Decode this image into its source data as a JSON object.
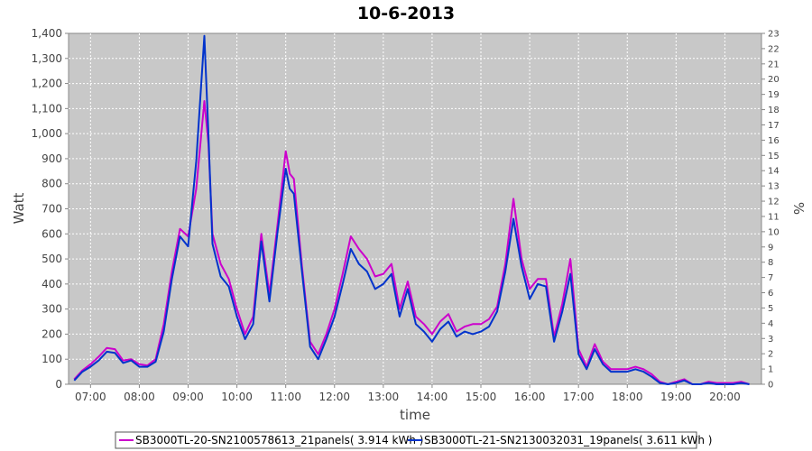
{
  "chart_data": {
    "type": "line",
    "title": "10-6-2013",
    "xlabel": "time",
    "ylabel": "Watt",
    "y2label": "%",
    "ylim": [
      0,
      1400
    ],
    "y2lim": [
      0,
      23
    ],
    "xlim": [
      6.55,
      20.75
    ],
    "grid": true,
    "legend_position": "bottom",
    "x_ticks": [
      {
        "value": 7,
        "label": "07:00"
      },
      {
        "value": 8,
        "label": "08:00"
      },
      {
        "value": 9,
        "label": "09:00"
      },
      {
        "value": 10,
        "label": "10:00"
      },
      {
        "value": 11,
        "label": "11:00"
      },
      {
        "value": 12,
        "label": "12:00"
      },
      {
        "value": 13,
        "label": "13:00"
      },
      {
        "value": 14,
        "label": "14:00"
      },
      {
        "value": 15,
        "label": "15:00"
      },
      {
        "value": 16,
        "label": "16:00"
      },
      {
        "value": 17,
        "label": "17:00"
      },
      {
        "value": 18,
        "label": "18:00"
      },
      {
        "value": 19,
        "label": "19:00"
      },
      {
        "value": 20,
        "label": "20:00"
      }
    ],
    "y_ticks": [
      {
        "value": 0,
        "label": "0"
      },
      {
        "value": 100,
        "label": "100"
      },
      {
        "value": 200,
        "label": "200"
      },
      {
        "value": 300,
        "label": "300"
      },
      {
        "value": 400,
        "label": "400"
      },
      {
        "value": 500,
        "label": "500"
      },
      {
        "value": 600,
        "label": "600"
      },
      {
        "value": 700,
        "label": "700"
      },
      {
        "value": 800,
        "label": "800"
      },
      {
        "value": 900,
        "label": "900"
      },
      {
        "value": 1000,
        "label": "1,000"
      },
      {
        "value": 1100,
        "label": "1,100"
      },
      {
        "value": 1200,
        "label": "1,200"
      },
      {
        "value": 1300,
        "label": "1,300"
      },
      {
        "value": 1400,
        "label": "1,400"
      }
    ],
    "y2_ticks": [
      "0",
      "1",
      "2",
      "3",
      "4",
      "5",
      "6",
      "7",
      "8",
      "9",
      "10",
      "11",
      "12",
      "13",
      "14",
      "15",
      "16",
      "17",
      "18",
      "19",
      "20",
      "21",
      "22",
      "23"
    ],
    "x": [
      "06:40",
      "06:50",
      "07:00",
      "07:10",
      "07:20",
      "07:30",
      "07:40",
      "07:50",
      "08:00",
      "08:10",
      "08:20",
      "08:30",
      "08:40",
      "08:50",
      "09:00",
      "09:10",
      "09:20",
      "09:25",
      "09:30",
      "09:40",
      "09:50",
      "10:00",
      "10:10",
      "10:20",
      "10:30",
      "10:40",
      "10:50",
      "11:00",
      "11:05",
      "11:10",
      "11:20",
      "11:30",
      "11:40",
      "11:50",
      "12:00",
      "12:10",
      "12:20",
      "12:30",
      "12:40",
      "12:50",
      "13:00",
      "13:10",
      "13:20",
      "13:30",
      "13:40",
      "13:50",
      "14:00",
      "14:10",
      "14:20",
      "14:30",
      "14:40",
      "14:50",
      "15:00",
      "15:10",
      "15:20",
      "15:30",
      "15:40",
      "15:50",
      "16:00",
      "16:10",
      "16:20",
      "16:30",
      "16:40",
      "16:50",
      "17:00",
      "17:10",
      "17:20",
      "17:30",
      "17:40",
      "17:50",
      "18:00",
      "18:10",
      "18:20",
      "18:30",
      "18:40",
      "18:50",
      "19:00",
      "19:10",
      "19:20",
      "19:30",
      "19:40",
      "19:50",
      "20:00",
      "20:10",
      "20:20",
      "20:30"
    ],
    "series": [
      {
        "name": "SB3000TL-20-SN2100578613_21panels( 3.914 kWh )",
        "color": "#cc00cc",
        "values": [
          20,
          55,
          80,
          110,
          145,
          140,
          95,
          100,
          80,
          75,
          100,
          240,
          450,
          620,
          590,
          780,
          1130,
          960,
          600,
          480,
          420,
          300,
          200,
          270,
          600,
          360,
          640,
          930,
          840,
          820,
          470,
          170,
          120,
          200,
          300,
          440,
          590,
          540,
          500,
          430,
          440,
          480,
          300,
          410,
          270,
          240,
          200,
          250,
          280,
          210,
          230,
          240,
          240,
          260,
          310,
          480,
          740,
          500,
          380,
          420,
          420,
          190,
          320,
          500,
          140,
          70,
          160,
          90,
          60,
          60,
          60,
          70,
          60,
          40,
          10,
          0,
          10,
          20,
          0,
          0,
          10,
          5,
          5,
          5,
          10,
          0
        ],
        "legend_text": "SB3000TL-20-SN2100578613_21panels( 3.914 kWh )"
      },
      {
        "name": "SB3000TL-21-SN2130032031_19panels( 3.611 kWh )",
        "color": "#0033cc",
        "values": [
          15,
          50,
          70,
          95,
          130,
          125,
          85,
          95,
          70,
          70,
          90,
          210,
          420,
          590,
          550,
          890,
          1390,
          1000,
          560,
          430,
          390,
          270,
          180,
          240,
          570,
          330,
          610,
          860,
          780,
          760,
          450,
          150,
          100,
          180,
          270,
          400,
          540,
          480,
          450,
          380,
          400,
          440,
          270,
          380,
          240,
          210,
          170,
          220,
          250,
          190,
          210,
          200,
          210,
          230,
          290,
          450,
          660,
          470,
          340,
          400,
          390,
          170,
          290,
          440,
          120,
          60,
          140,
          80,
          50,
          50,
          50,
          60,
          50,
          30,
          5,
          0,
          5,
          15,
          0,
          0,
          5,
          0,
          0,
          0,
          5,
          0
        ],
        "legend_text": "SB3000TL-21-SN2130032031_19panels( 3.611 kWh )"
      }
    ]
  }
}
